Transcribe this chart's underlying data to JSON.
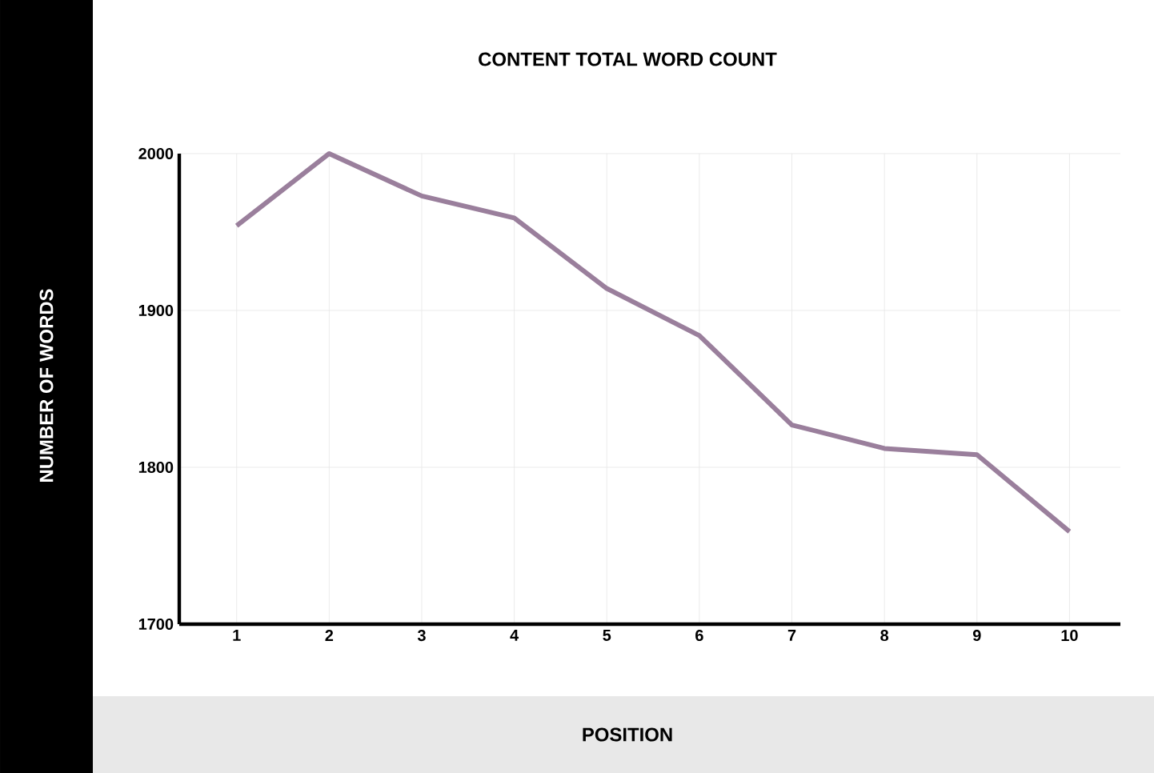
{
  "chart_data": {
    "type": "line",
    "title": "CONTENT TOTAL WORD COUNT",
    "xlabel": "POSITION",
    "ylabel": "NUMBER OF WORDS",
    "categories": [
      "1",
      "2",
      "3",
      "4",
      "5",
      "6",
      "7",
      "8",
      "9",
      "10"
    ],
    "series": [
      {
        "color": "#9a7f9c",
        "values": [
          1954,
          2000,
          1973,
          1959,
          1914,
          1884,
          1827,
          1812,
          1808,
          1759
        ]
      }
    ],
    "ylim": [
      1700,
      2000
    ],
    "yticks": [
      1700,
      1800,
      1900,
      2000
    ],
    "grid": true
  }
}
